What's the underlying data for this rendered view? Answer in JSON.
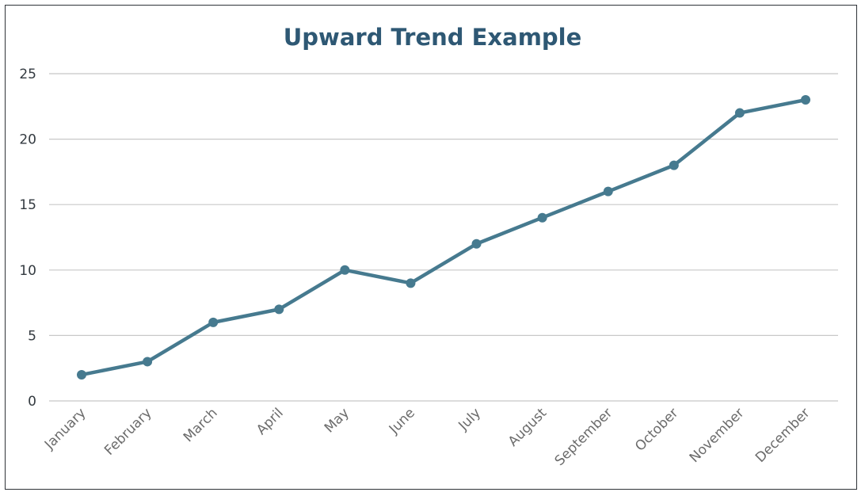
{
  "chart_data": {
    "type": "line",
    "title": "Upward Trend Example",
    "xlabel": "",
    "ylabel": "",
    "categories": [
      "January",
      "February",
      "March",
      "April",
      "May",
      "June",
      "July",
      "August",
      "September",
      "October",
      "November",
      "December"
    ],
    "series": [
      {
        "values": [
          2,
          3,
          6,
          7,
          10,
          9,
          12,
          14,
          16,
          18,
          22,
          23
        ]
      }
    ],
    "ylim": [
      0,
      25
    ],
    "yticks": [
      0,
      5,
      10,
      15,
      20,
      25
    ],
    "grid": true,
    "legend": "none",
    "colors": {
      "line": "#467a8f",
      "grid": "#c8c8c8",
      "title": "#2e5874"
    }
  }
}
